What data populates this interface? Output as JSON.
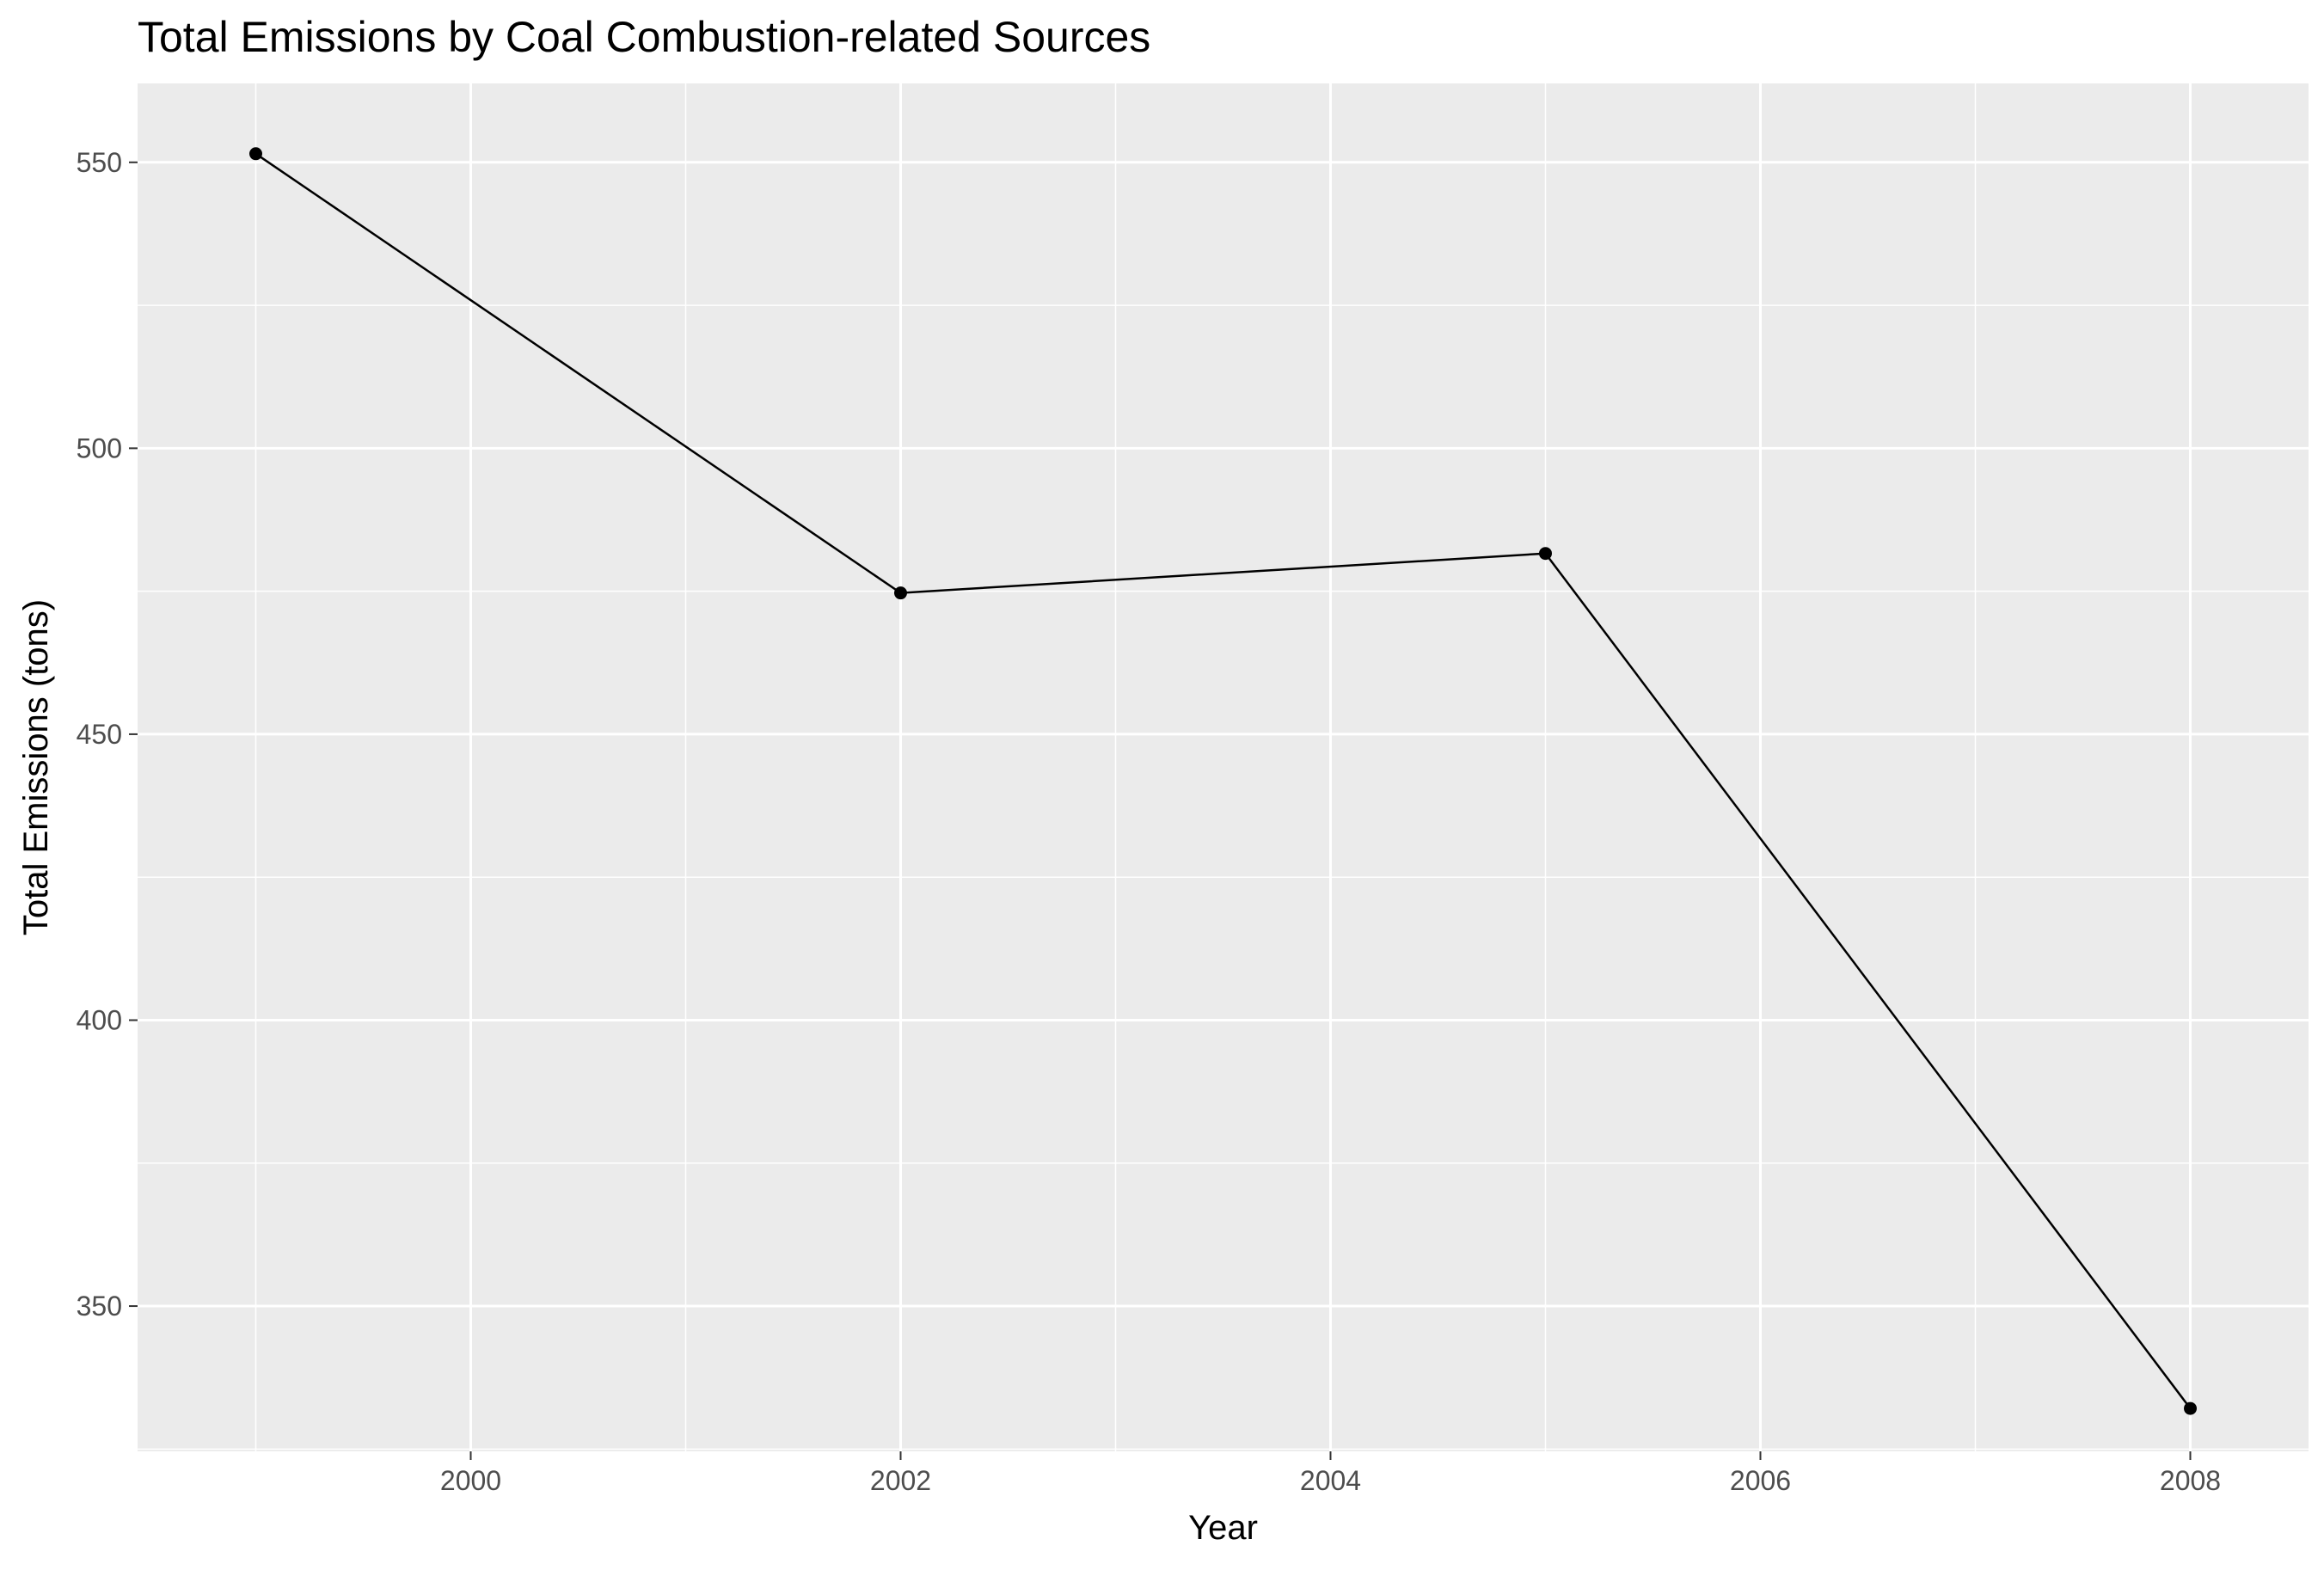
{
  "chart_data": {
    "type": "line",
    "title": "Total Emissions by Coal Combustion-related Sources",
    "xlabel": "Year",
    "ylabel": "Total Emissions (tons)",
    "x": [
      1999,
      2002,
      2005,
      2008
    ],
    "series": [
      {
        "values": [
          551.5,
          474.7,
          481.6,
          332.1
        ]
      }
    ],
    "xlim": [
      1998.45,
      2008.55
    ],
    "ylim": [
      324.6,
      563.8
    ],
    "x_ticks": [
      2000,
      2002,
      2004,
      2006,
      2008
    ],
    "x_tick_labels": [
      "2000",
      "2002",
      "2004",
      "2006",
      "2008"
    ],
    "y_ticks": [
      350,
      400,
      450,
      500,
      550
    ],
    "y_tick_labels": [
      "350",
      "400",
      "450",
      "500",
      "550"
    ],
    "x_minor_ticks": [
      1999,
      2001,
      2003,
      2005,
      2007
    ],
    "y_minor_ticks": [
      325,
      375,
      425,
      475,
      525
    ],
    "grid": true,
    "legend": "none",
    "colors": {
      "panel_background": "#ebebeb",
      "grid": "#ffffff",
      "line": "#000000",
      "point": "#000000",
      "tick_text": "#4d4d4d",
      "tick_mark": "#333333"
    }
  }
}
